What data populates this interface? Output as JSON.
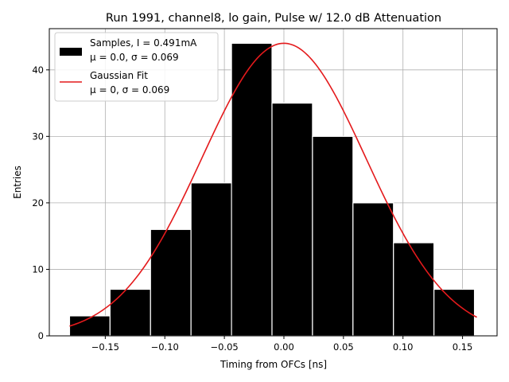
{
  "chart_data": {
    "type": "bar",
    "title": "Run 1991, channel8, lo gain, Pulse w/ 12.0 dB Attenuation",
    "xlabel": "Timing from OFCs [ns]",
    "ylabel": "Entries",
    "xlim": [
      -0.197,
      0.179
    ],
    "ylim": [
      0,
      46.2
    ],
    "grid": true,
    "xticks": [
      -0.15,
      -0.1,
      -0.05,
      0.0,
      0.05,
      0.1,
      0.15
    ],
    "xtick_labels": [
      "−0.15",
      "−0.10",
      "−0.05",
      "0.00",
      "0.05",
      "0.10",
      "0.15"
    ],
    "yticks": [
      0,
      10,
      20,
      30,
      40
    ],
    "ytick_labels": [
      "0",
      "10",
      "20",
      "30",
      "40"
    ],
    "bin_edges": [
      -0.18,
      -0.146,
      -0.112,
      -0.078,
      -0.044,
      -0.01,
      0.024,
      0.058,
      0.092,
      0.126,
      0.16
    ],
    "values": [
      3,
      7,
      16,
      23,
      44,
      35,
      30,
      20,
      14,
      7
    ],
    "fit": {
      "amplitude": 44.0,
      "mu": 0.0,
      "sigma": 0.069,
      "x_range": [
        -0.18,
        0.162
      ]
    },
    "colors": {
      "bars": "#000000",
      "bar_edge": "#ffffff",
      "fit": "#e41a1c",
      "grid": "#b0b0b0"
    },
    "legend": {
      "placement": "top-left",
      "entries": [
        {
          "line1": "Samples, I = 0.491mA",
          "line2": "μ = 0.0, σ = 0.069"
        },
        {
          "line1": "Gaussian Fit",
          "line2": "μ = 0, σ = 0.069"
        }
      ]
    }
  }
}
